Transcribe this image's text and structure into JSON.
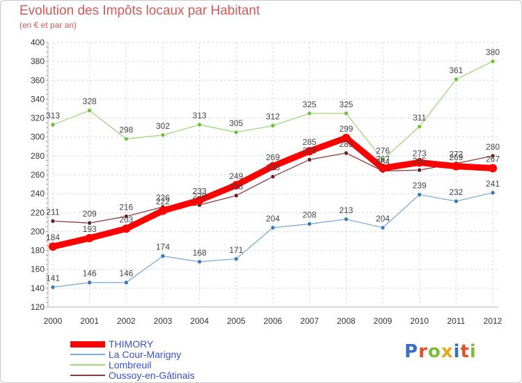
{
  "header": {
    "title": "Evolution des Impôts locaux par Habitant",
    "subtitle": "(en € et par an)"
  },
  "logo": {
    "text": "Proxiti",
    "letter_colors": [
      "#3a6fc4",
      "#e0522a",
      "#7dbd3a",
      "#e6a817",
      "#3a6fc4",
      "#e0522a",
      "#7dbd3a"
    ]
  },
  "chart_data": {
    "type": "line",
    "title": "Evolution des Impôts locaux par Habitant",
    "subtitle": "(en € et par an)",
    "xlabel": "",
    "ylabel": "",
    "categories": [
      "2000",
      "2001",
      "2002",
      "2003",
      "2004",
      "2005",
      "2006",
      "2007",
      "2008",
      "2009",
      "2010",
      "2011",
      "2012"
    ],
    "ylim": [
      120,
      400
    ],
    "yticks": [
      120,
      140,
      160,
      180,
      200,
      220,
      240,
      260,
      280,
      300,
      320,
      340,
      360,
      380,
      400
    ],
    "grid": true,
    "legend_position": "bottom-left",
    "series": [
      {
        "name": "THIMORY",
        "color": "#ff0000",
        "marker_color": "#ff0000",
        "values": [
          184,
          193,
          203,
          222,
          233,
          249,
          269,
          285,
          299,
          267,
          273,
          269,
          267
        ],
        "labels": [
          "184",
          "193",
          "203",
          "222",
          "233",
          "249",
          "269",
          "285",
          "299",
          "267",
          "273",
          "269",
          "267"
        ]
      },
      {
        "name": "La Cour-Marigny",
        "color": "#7aabdb",
        "marker_color": "#3a78b8",
        "values": [
          141,
          146,
          146,
          174,
          168,
          171,
          204,
          208,
          213,
          204,
          239,
          232,
          241
        ],
        "labels": [
          "141",
          "146",
          "146",
          "174",
          "168",
          "171",
          "204",
          "208",
          "213",
          "204",
          "239",
          "232",
          "241"
        ]
      },
      {
        "name": "Lombreuil",
        "color": "#9ed87a",
        "marker_color": "#6cc13a",
        "values": [
          313,
          328,
          298,
          302,
          313,
          305,
          312,
          325,
          325,
          276,
          311,
          361,
          380
        ],
        "labels": [
          "313",
          "328",
          "298",
          "302",
          "313",
          "305",
          "312",
          "325",
          "325",
          "276",
          "311",
          "361",
          "380"
        ]
      },
      {
        "name": "Oussoy-en-Gâtinais",
        "color": "#8a3a3a",
        "marker_color": "#6e1e1e",
        "values": [
          211,
          209,
          216,
          226,
          228,
          238,
          258,
          276,
          283,
          264,
          265,
          272,
          280
        ],
        "labels": [
          "211",
          "209",
          "216",
          "226",
          "228",
          "238",
          "258",
          "276",
          "283",
          "264",
          "265",
          "272",
          "280"
        ]
      }
    ]
  }
}
